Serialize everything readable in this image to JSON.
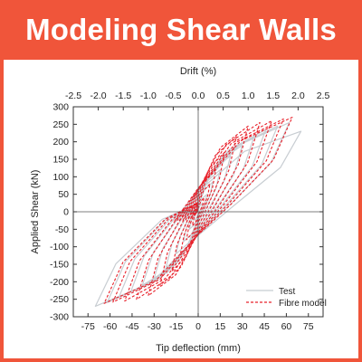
{
  "banner": {
    "title": "Modeling Shear Walls"
  },
  "colors": {
    "brand": "#f0553a",
    "test": "#c8cdd2",
    "fibre": "#e8202a",
    "axis": "#333333"
  },
  "chart_data": {
    "type": "line",
    "title": "",
    "xlabel": "Tip deflection (mm)",
    "ylabel": "Applied Shear (kN)",
    "x2label": "Drift (%)",
    "xlim": [
      -85,
      85
    ],
    "ylim": [
      -300,
      300
    ],
    "x2lim": [
      -2.5,
      2.5
    ],
    "x_ticks": [
      -75,
      -60,
      -45,
      -30,
      -15,
      0,
      15,
      30,
      45,
      60,
      75
    ],
    "y_ticks": [
      -300,
      -250,
      -200,
      -150,
      -100,
      -50,
      0,
      50,
      100,
      150,
      200,
      250,
      300
    ],
    "x2_ticks": [
      "-2.5",
      "-2.0",
      "-1.5",
      "-1.0",
      "-0.5",
      "0.0",
      "0.5",
      "1.0",
      "1.5",
      "2.0",
      "2.5"
    ],
    "x2_tick_values": [
      -2.5,
      -2.0,
      -1.5,
      -1.0,
      -0.5,
      0.0,
      0.5,
      1.0,
      1.5,
      2.0,
      2.5
    ],
    "grid": false,
    "zero_lines": true,
    "legend_position": "bottom-right",
    "series": [
      {
        "name": "Test",
        "style": "solid",
        "loops": [
          {
            "dx": 3,
            "py": 25,
            "ny": -25
          },
          {
            "dx": 6,
            "py": 50,
            "ny": -50
          },
          {
            "dx": 10,
            "py": 85,
            "ny": -85
          },
          {
            "dx": 15,
            "py": 120,
            "ny": -120
          },
          {
            "dx": 22,
            "py": 160,
            "ny": -160
          },
          {
            "dx": 30,
            "py": 190,
            "ny": -190
          },
          {
            "dx": 38,
            "py": 215,
            "ny": -210
          },
          {
            "dx": 46,
            "py": 235,
            "ny": -230
          },
          {
            "dx": 54,
            "py": 245,
            "ny": -245
          },
          {
            "dx": 62,
            "py": 255,
            "ny": -260
          },
          {
            "dx": 70,
            "py": 230,
            "ny": -270
          }
        ]
      },
      {
        "name": "Fibre model",
        "style": "dashed",
        "loops": [
          {
            "dx": 4,
            "py": 40,
            "ny": -40
          },
          {
            "dx": 8,
            "py": 80,
            "ny": -80
          },
          {
            "dx": 12,
            "py": 120,
            "ny": -120
          },
          {
            "dx": 18,
            "py": 170,
            "ny": -170
          },
          {
            "dx": 26,
            "py": 215,
            "ny": -210
          },
          {
            "dx": 34,
            "py": 245,
            "ny": -240
          },
          {
            "dx": 42,
            "py": 255,
            "ny": -250
          },
          {
            "dx": 50,
            "py": 260,
            "ny": -255
          },
          {
            "dx": 58,
            "py": 265,
            "ny": -258
          },
          {
            "dx": 64,
            "py": 270,
            "ny": -262
          }
        ]
      }
    ]
  }
}
